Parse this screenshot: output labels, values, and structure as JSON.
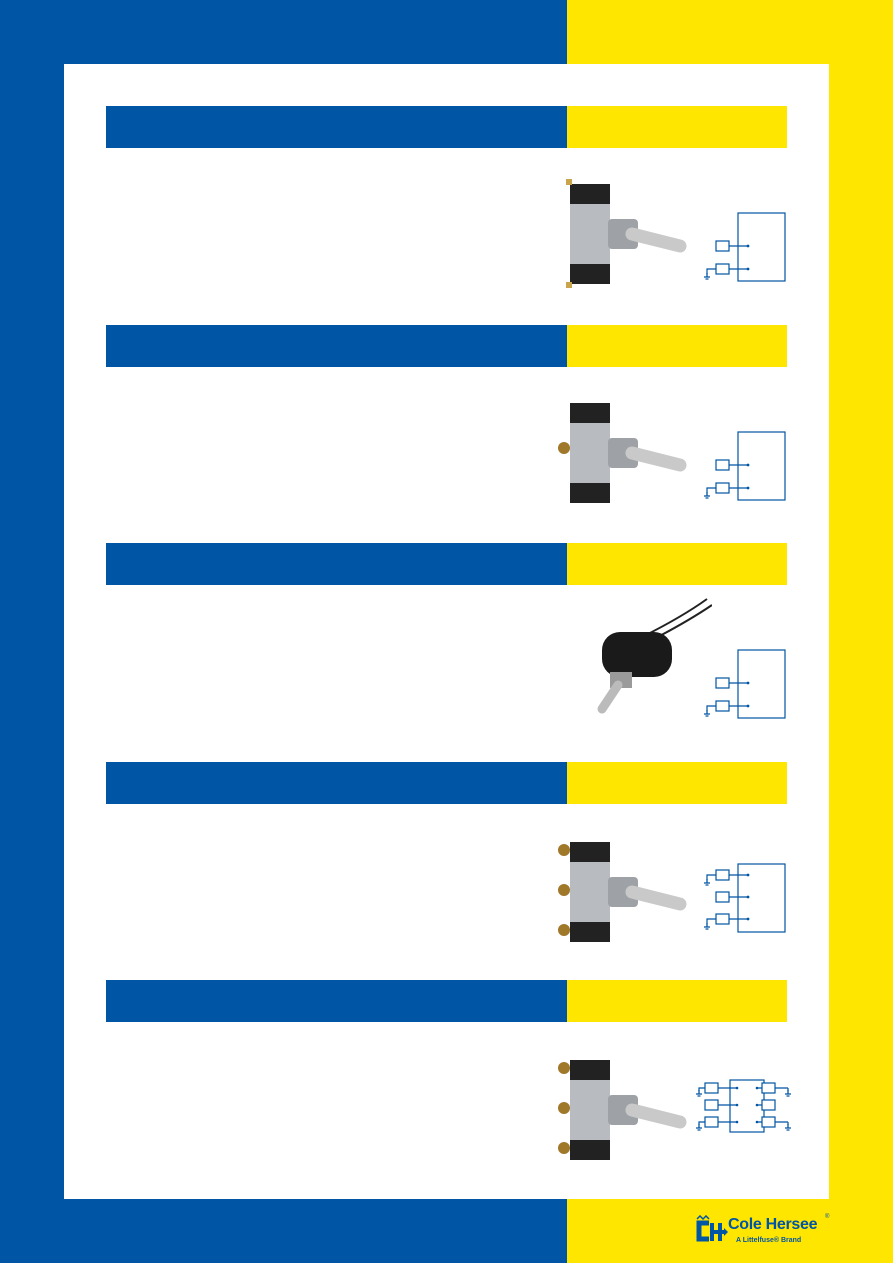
{
  "colors": {
    "brand_blue": "#0055A4",
    "brand_yellow": "#FFE600"
  },
  "sections": [
    {
      "product_image": "toggle-switch-metal-screw-terminal",
      "diagram": "2-terminal"
    },
    {
      "product_image": "toggle-switch-metal-side-screw",
      "diagram": "2-terminal"
    },
    {
      "product_image": "toggle-switch-black-boot-wire-leads",
      "diagram": "2-terminal"
    },
    {
      "product_image": "toggle-switch-3-screw-terminal",
      "diagram": "3-terminal"
    },
    {
      "product_image": "toggle-switch-6-screw-terminal",
      "diagram": "6-terminal"
    }
  ],
  "footer": {
    "logo_name": "Cole Hersee",
    "logo_registered": "®",
    "logo_tagline": "A Littelfuse® Brand"
  }
}
